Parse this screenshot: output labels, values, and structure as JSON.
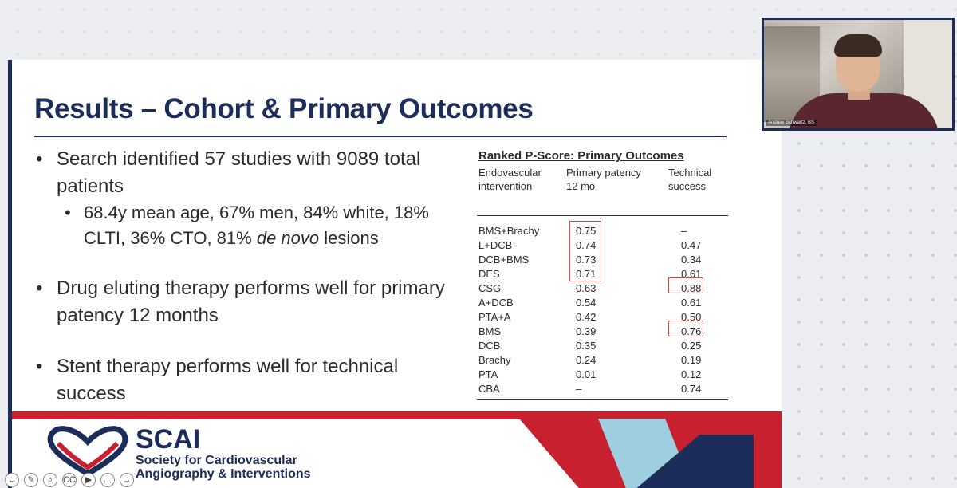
{
  "slide": {
    "title": "Results – Cohort & Primary Outcomes",
    "bullets": [
      "Search identified 57 studies with 9089 total patients",
      "68.4y mean age, 67% men, 84% white, 18% CLTI, 36% CTO, 81% de novo lesions",
      "Drug eluting therapy performs well for primary patency 12 months",
      "Stent therapy performs well for technical success"
    ]
  },
  "table": {
    "title": "Ranked P-Score: Primary Outcomes",
    "headers": [
      "Endovascular\nintervention",
      "Primary patency\n12 mo",
      "Technical\nsuccess"
    ],
    "rows": [
      [
        "BMS+Brachy",
        "0.75",
        "–"
      ],
      [
        "L+DCB",
        "0.74",
        "0.47"
      ],
      [
        "DCB+BMS",
        "0.73",
        "0.34"
      ],
      [
        "DES",
        "0.71",
        "0.61"
      ],
      [
        "CSG",
        "0.63",
        "0.88"
      ],
      [
        "A+DCB",
        "0.54",
        "0.61"
      ],
      [
        "PTA+A",
        "0.42",
        "0.50"
      ],
      [
        "BMS",
        "0.39",
        "0.76"
      ],
      [
        "DCB",
        "0.35",
        "0.25"
      ],
      [
        "Brachy",
        "0.24",
        "0.19"
      ],
      [
        "PTA",
        "0.01",
        "0.12"
      ],
      [
        "CBA",
        "–",
        "0.74"
      ]
    ]
  },
  "footer": {
    "brand": "SCAI",
    "brand_line1": "Society for Cardiovascular",
    "brand_line2": "Angiography & Interventions",
    "colors": {
      "red": "#c8202f",
      "navy": "#1c2d5a",
      "light_blue": "#9ecfe0"
    }
  },
  "presenter": {
    "name": "Andrew Schwartz, BS"
  },
  "controls": [
    {
      "icon": "back-arrow-icon",
      "glyph": "←"
    },
    {
      "icon": "pen-icon",
      "glyph": "✎"
    },
    {
      "icon": "zoom-icon",
      "glyph": "⌕"
    },
    {
      "icon": "captions-icon",
      "glyph": "CC"
    },
    {
      "icon": "camera-icon",
      "glyph": "▶"
    },
    {
      "icon": "more-icon",
      "glyph": "…"
    },
    {
      "icon": "forward-arrow-icon",
      "glyph": "→"
    }
  ]
}
